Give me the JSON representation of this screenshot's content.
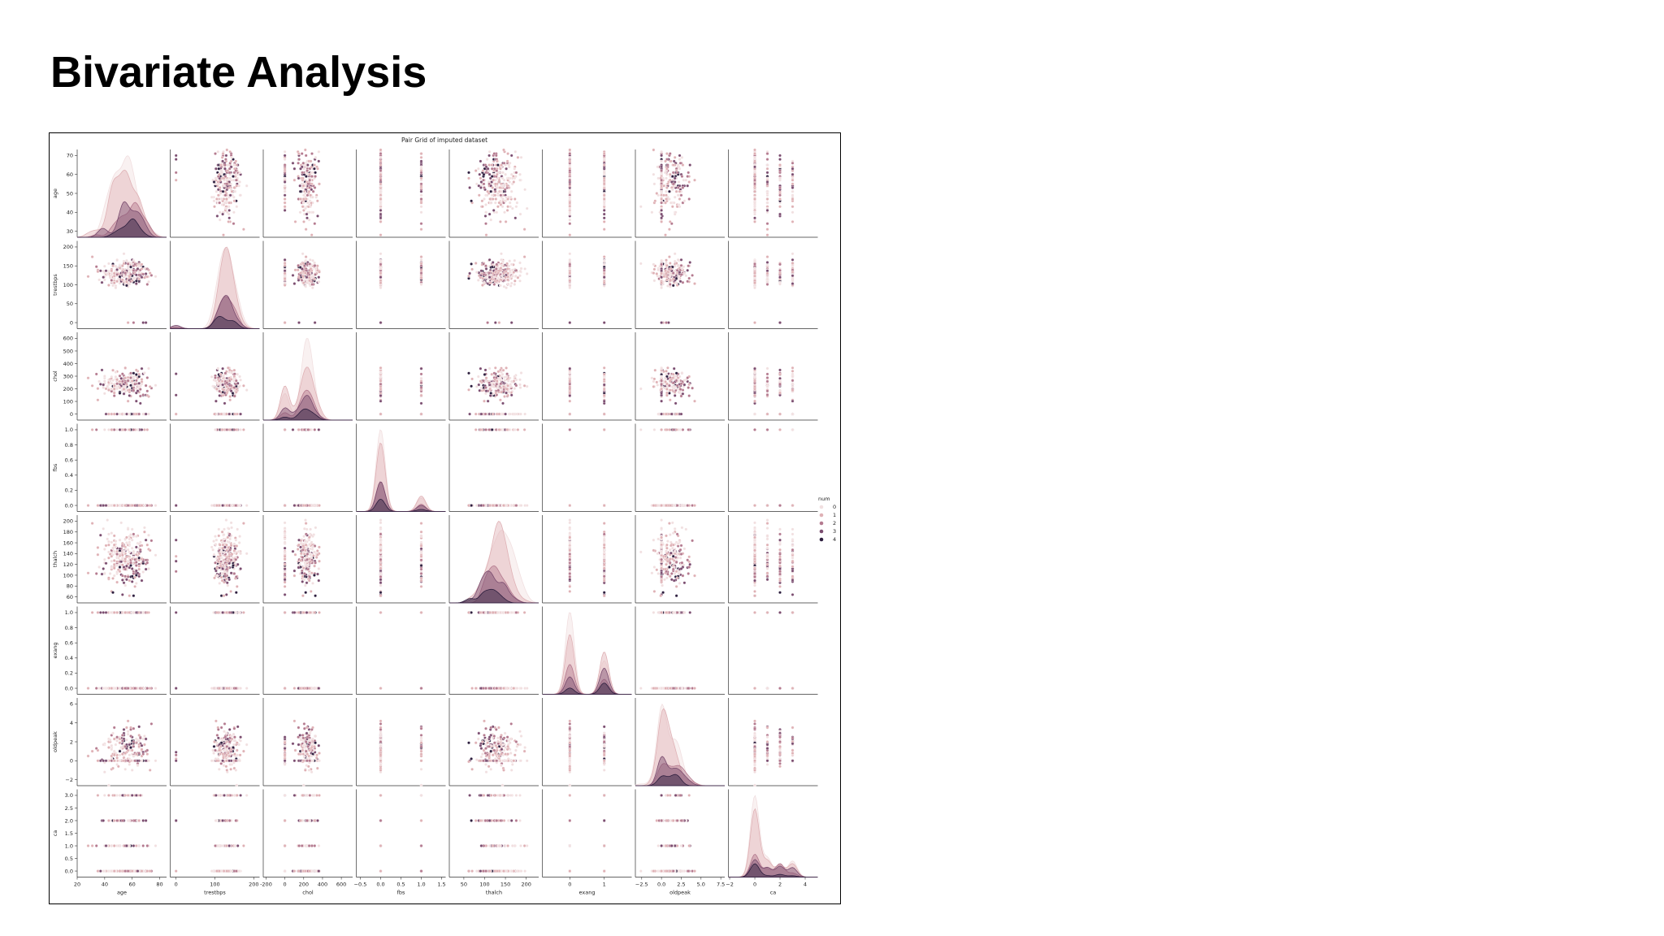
{
  "slide": {
    "title": "Bivariate Analysis"
  },
  "chart_data": {
    "type": "scatter",
    "kind": "pair-grid",
    "title": "Pair Grid of imputed dataset",
    "diagonal": "kde",
    "hue": {
      "name": "num",
      "levels": [
        "0",
        "1",
        "2",
        "3",
        "4"
      ],
      "colors": [
        "#f1dfe0",
        "#dfb1b5",
        "#b47a8f",
        "#7a4c6f",
        "#2d1e3e"
      ]
    },
    "legend_position": "right",
    "variables": [
      {
        "name": "age",
        "range": [
          20,
          85
        ],
        "ticks": [
          20,
          40,
          60,
          80
        ],
        "yticks": [
          30,
          40,
          50,
          60,
          70
        ]
      },
      {
        "name": "trestbps",
        "range": [
          -15,
          215
        ],
        "ticks": [
          0,
          100,
          200
        ],
        "yticks": [
          0,
          50,
          100,
          150,
          200
        ]
      },
      {
        "name": "chol",
        "range": [
          -230,
          720
        ],
        "ticks": [
          -200,
          0,
          200,
          400,
          600
        ],
        "yticks": [
          0,
          100,
          200,
          300,
          400,
          500,
          600
        ]
      },
      {
        "name": "fbs",
        "range": [
          -0.6,
          1.6
        ],
        "ticks": [
          -0.5,
          0.0,
          0.5,
          1.0,
          1.5
        ],
        "yticks": [
          0.0,
          0.2,
          0.4,
          0.6,
          0.8,
          1.0
        ],
        "tick_labels": [
          "−0.5",
          "0.0",
          "0.5",
          "1.0",
          "1.5"
        ],
        "ytick_labels": [
          "0.0",
          "0.2",
          "0.4",
          "0.6",
          "0.8",
          "1.0"
        ]
      },
      {
        "name": "thalch",
        "range": [
          15,
          230
        ],
        "ticks": [
          50,
          100,
          150,
          200
        ],
        "yticks": [
          60,
          80,
          100,
          120,
          140,
          160,
          180,
          200
        ]
      },
      {
        "name": "exang",
        "range": [
          -0.8,
          1.8
        ],
        "ticks": [
          0,
          1
        ],
        "yticks": [
          0.0,
          0.2,
          0.4,
          0.6,
          0.8,
          1.0
        ],
        "ytick_labels": [
          "0.0",
          "0.2",
          "0.4",
          "0.6",
          "0.8",
          "1.0"
        ]
      },
      {
        "name": "oldpeak",
        "range": [
          -3.3,
          8.0
        ],
        "ticks": [
          -2.5,
          0.0,
          2.5,
          5.0,
          7.5
        ],
        "yticks": [
          -2,
          0,
          2,
          4,
          6
        ],
        "tick_labels": [
          "−2.5",
          "0.0",
          "2.5",
          "5.0",
          "7.5"
        ],
        "ytick_labels": [
          "−2",
          "0",
          "2",
          "4",
          "6"
        ]
      },
      {
        "name": "ca",
        "range": [
          -2.1,
          5.0
        ],
        "ticks": [
          -2,
          0,
          2,
          4
        ],
        "yticks": [
          0.0,
          0.5,
          1.0,
          1.5,
          2.0,
          2.5,
          3.0
        ],
        "tick_labels": [
          "−2",
          "0",
          "2",
          "4"
        ],
        "ytick_labels": [
          "0.0",
          "0.5",
          "1.0",
          "1.5",
          "2.0",
          "2.5",
          "3.0"
        ]
      }
    ]
  }
}
